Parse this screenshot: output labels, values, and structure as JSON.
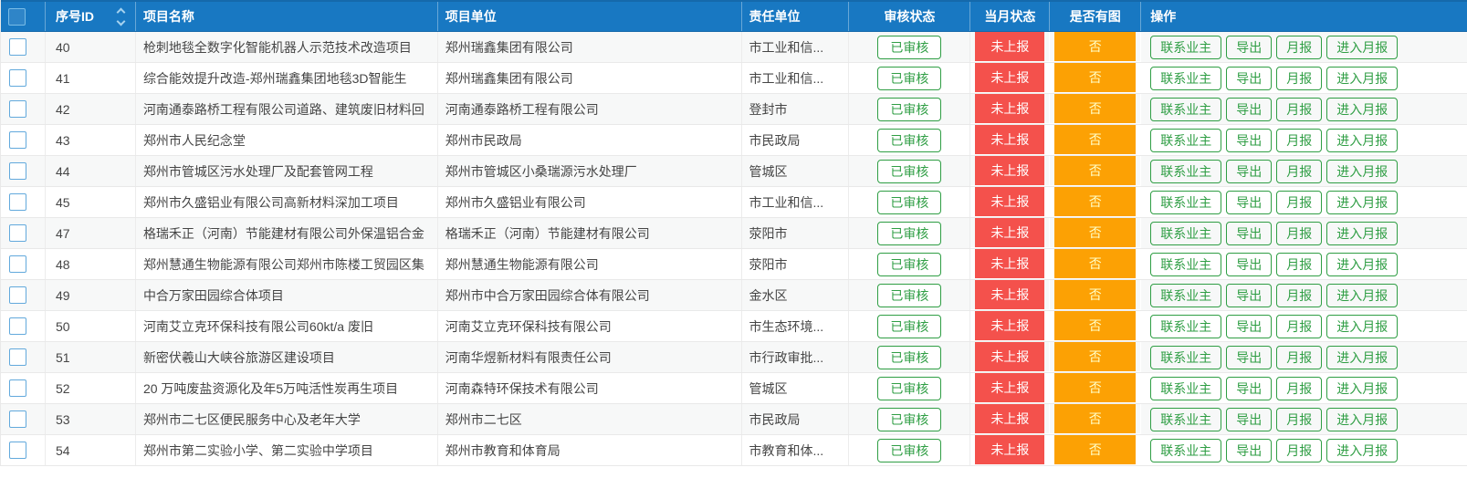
{
  "header": {
    "columns": {
      "id": "序号ID",
      "name": "项目名称",
      "unit": "项目单位",
      "responsible": "责任单位",
      "audit_status": "审核状态",
      "month_status": "当月状态",
      "has_image": "是否有图",
      "operations": "操作"
    }
  },
  "shared": {
    "audit_status": "已审核",
    "month_status": "未上报",
    "has_image": "否",
    "op_contact": "联系业主",
    "op_export": "导出",
    "op_monthly": "月报",
    "op_enter_monthly": "进入月报"
  },
  "colors": {
    "header_bg": "#1878c2",
    "month_status_red": "#f4514c",
    "has_image_orange": "#fca104",
    "button_green": "#2f9e44"
  },
  "rows": [
    {
      "id": "40",
      "name": "枪刺地毯全数字化智能机器人示范技术改造项目",
      "unit": "郑州瑞鑫集团有限公司",
      "responsible": "市工业和信..."
    },
    {
      "id": "41",
      "name": "综合能效提升改造-郑州瑞鑫集团地毯3D智能生",
      "unit": "郑州瑞鑫集团有限公司",
      "responsible": "市工业和信..."
    },
    {
      "id": "42",
      "name": "河南通泰路桥工程有限公司道路、建筑废旧材料回",
      "unit": "河南通泰路桥工程有限公司",
      "responsible": "登封市"
    },
    {
      "id": "43",
      "name": "郑州市人民纪念堂",
      "unit": "郑州市民政局",
      "responsible": "市民政局"
    },
    {
      "id": "44",
      "name": "郑州市管城区污水处理厂及配套管网工程",
      "unit": "郑州市管城区小桑瑞源污水处理厂",
      "responsible": "管城区"
    },
    {
      "id": "45",
      "name": "郑州市久盛铝业有限公司高新材料深加工项目",
      "unit": "郑州市久盛铝业有限公司",
      "responsible": "市工业和信..."
    },
    {
      "id": "47",
      "name": "格瑞禾正（河南）节能建材有限公司外保温铝合金",
      "unit": "格瑞禾正（河南）节能建材有限公司",
      "responsible": "荥阳市"
    },
    {
      "id": "48",
      "name": "郑州慧通生物能源有限公司郑州市陈楼工贸园区集",
      "unit": "郑州慧通生物能源有限公司",
      "responsible": "荥阳市"
    },
    {
      "id": "49",
      "name": "中合万家田园综合体项目",
      "unit": "郑州市中合万家田园综合体有限公司",
      "responsible": "金水区"
    },
    {
      "id": "50",
      "name": "河南艾立克环保科技有限公司60kt/a 废旧",
      "unit": "河南艾立克环保科技有限公司",
      "responsible": "市生态环境..."
    },
    {
      "id": "51",
      "name": "新密伏羲山大峡谷旅游区建设项目",
      "unit": "河南华煜新材料有限责任公司",
      "responsible": "市行政审批..."
    },
    {
      "id": "52",
      "name": "20 万吨废盐资源化及年5万吨活性炭再生项目",
      "unit": "河南森特环保技术有限公司",
      "responsible": "管城区"
    },
    {
      "id": "53",
      "name": "郑州市二七区便民服务中心及老年大学",
      "unit": "郑州市二七区",
      "responsible": "市民政局"
    },
    {
      "id": "54",
      "name": "郑州市第二实验小学、第二实验中学项目",
      "unit": "郑州市教育和体育局",
      "responsible": "市教育和体..."
    }
  ]
}
